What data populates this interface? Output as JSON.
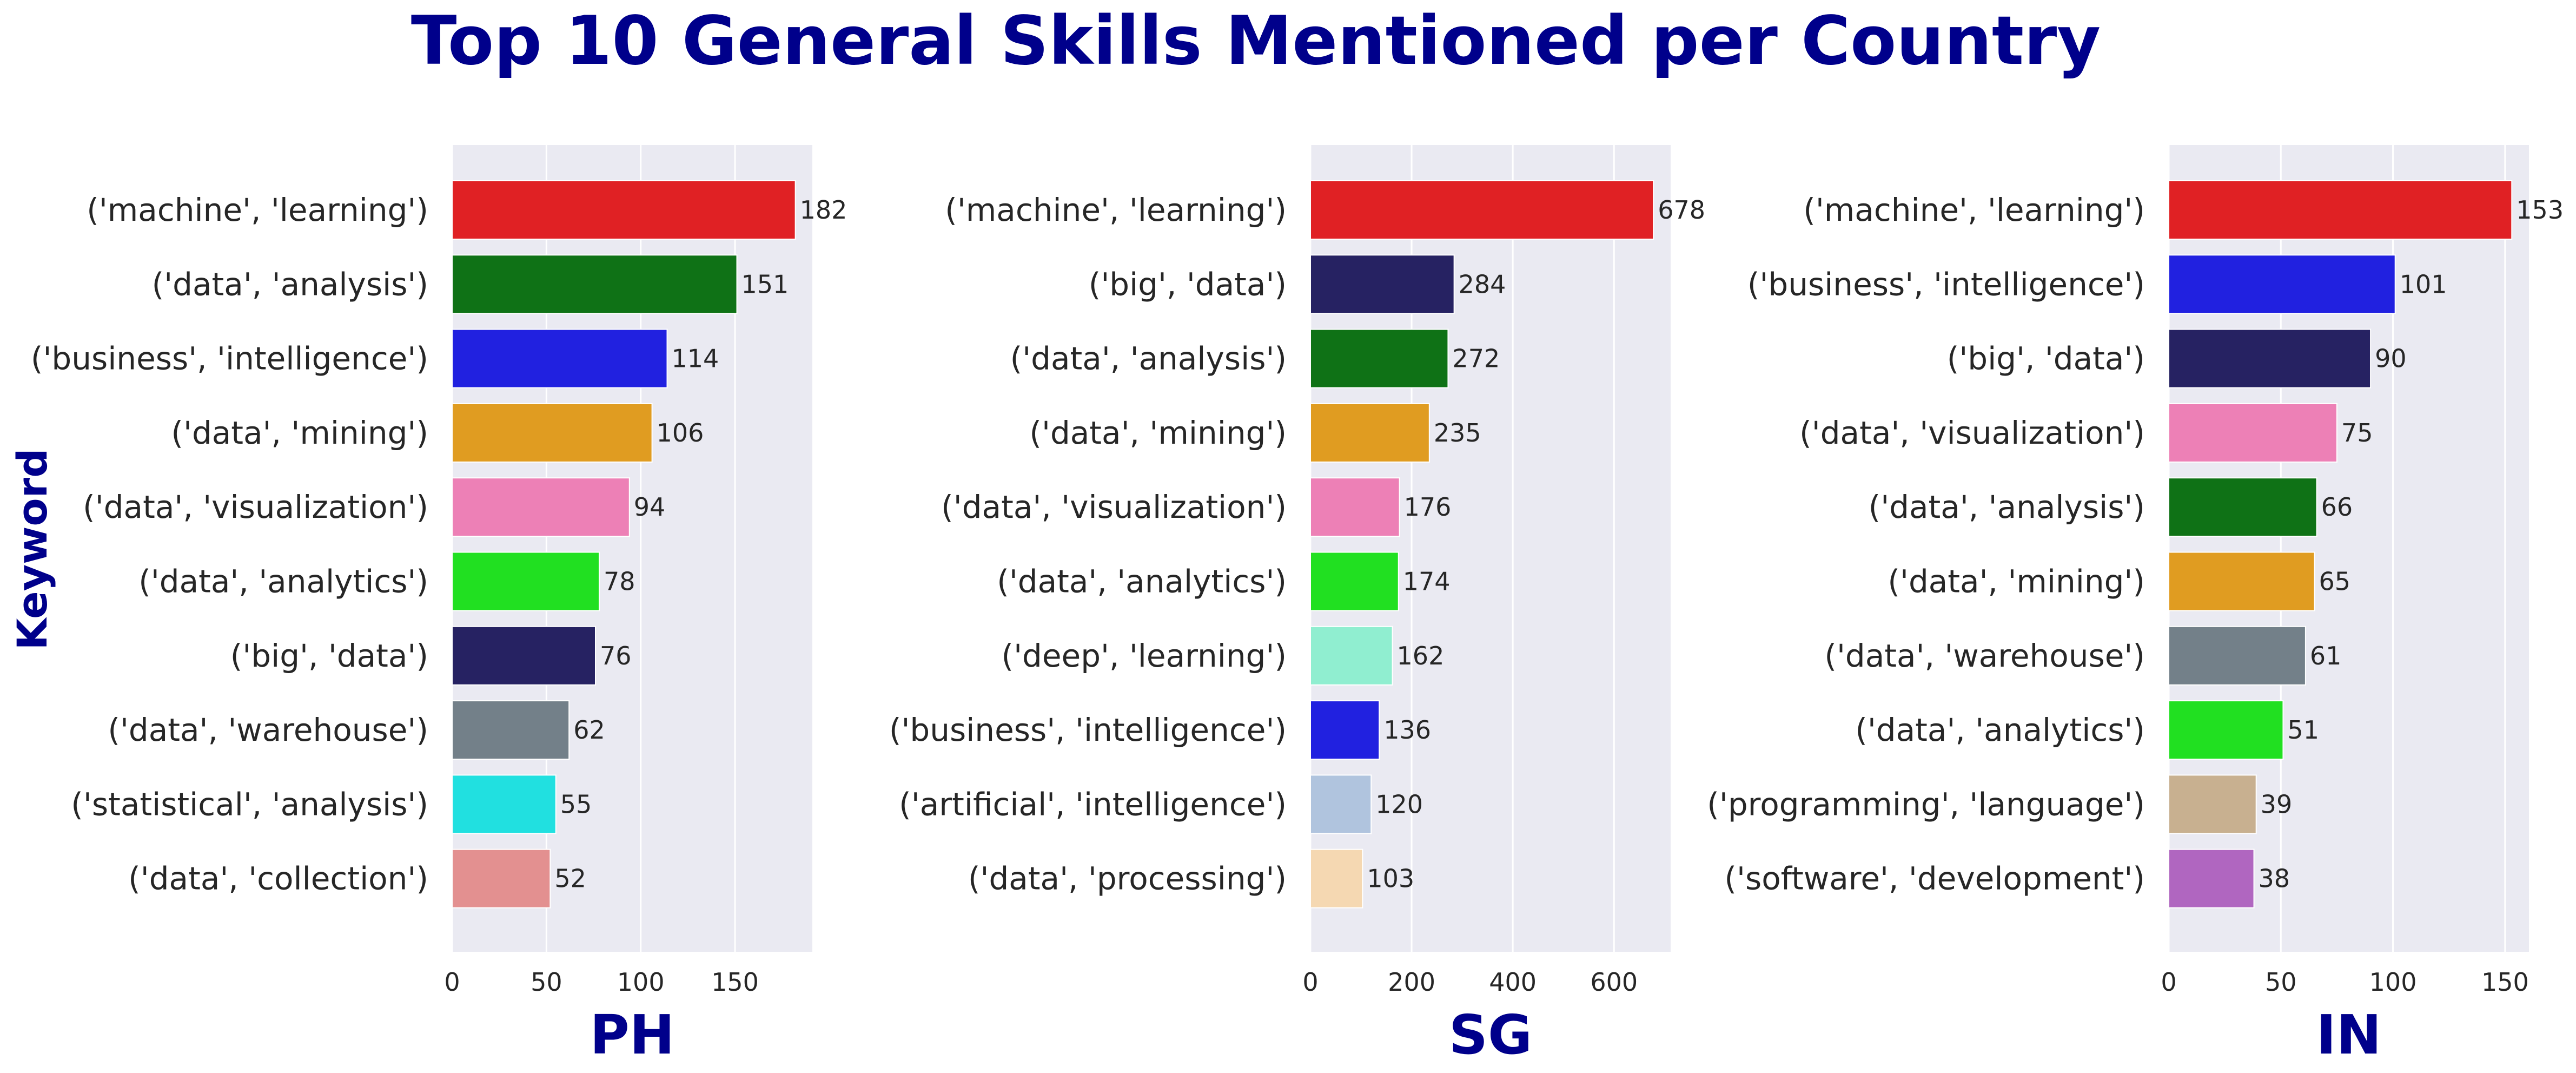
{
  "title": "Top 10 General Skills Mentioned per Country",
  "ylabel": "Keyword",
  "title_color": "#00008b",
  "plot_bg": "#eaeaf2",
  "grid_color": "#ffffff",
  "tick_color": "#262626",
  "chart_data": [
    {
      "type": "bar",
      "orientation": "horizontal",
      "xlabel": "PH",
      "xlim": [
        0,
        191
      ],
      "xticks": [
        0,
        50,
        100,
        150
      ],
      "grid": true,
      "categories": [
        "('machine', 'learning')",
        "('data', 'analysis')",
        "('business', 'intelligence')",
        "('data', 'mining')",
        "('data', 'visualization')",
        "('data', 'analytics')",
        "('big', 'data')",
        "('data', 'warehouse')",
        "('statistical', 'analysis')",
        "('data', 'collection')"
      ],
      "values": [
        182,
        151,
        114,
        106,
        94,
        78,
        76,
        62,
        55,
        52
      ],
      "colors": [
        "#e02124",
        "#0f7216",
        "#2121e0",
        "#e09c21",
        "#ed80b6",
        "#21e021",
        "#262262",
        "#738089",
        "#21e0e0",
        "#e39090"
      ]
    },
    {
      "type": "bar",
      "orientation": "horizontal",
      "xlabel": "SG",
      "xlim": [
        0,
        712
      ],
      "xticks": [
        0,
        200,
        400,
        600
      ],
      "grid": true,
      "categories": [
        "('machine', 'learning')",
        "('big', 'data')",
        "('data', 'analysis')",
        "('data', 'mining')",
        "('data', 'visualization')",
        "('data', 'analytics')",
        "('deep', 'learning')",
        "('business', 'intelligence')",
        "('artificial', 'intelligence')",
        "('data', 'processing')"
      ],
      "values": [
        678,
        284,
        272,
        235,
        176,
        174,
        162,
        136,
        120,
        103
      ],
      "colors": [
        "#e02124",
        "#262262",
        "#0f7216",
        "#e09c21",
        "#ed80b6",
        "#21e021",
        "#90eed0",
        "#2121e0",
        "#b0c4de",
        "#f5d8b2"
      ]
    },
    {
      "type": "bar",
      "orientation": "horizontal",
      "xlabel": "IN",
      "xlim": [
        0,
        160.65
      ],
      "xticks": [
        0,
        50,
        100,
        150
      ],
      "grid": true,
      "categories": [
        "('machine', 'learning')",
        "('business', 'intelligence')",
        "('big', 'data')",
        "('data', 'visualization')",
        "('data', 'analysis')",
        "('data', 'mining')",
        "('data', 'warehouse')",
        "('data', 'analytics')",
        "('programming', 'language')",
        "('software', 'development')"
      ],
      "values": [
        153,
        101,
        90,
        75,
        66,
        65,
        61,
        51,
        39,
        38
      ],
      "colors": [
        "#e02124",
        "#2121e0",
        "#262262",
        "#ed80b6",
        "#0f7216",
        "#e09c21",
        "#738089",
        "#21e021",
        "#c8b090",
        "#b066c0"
      ]
    }
  ]
}
